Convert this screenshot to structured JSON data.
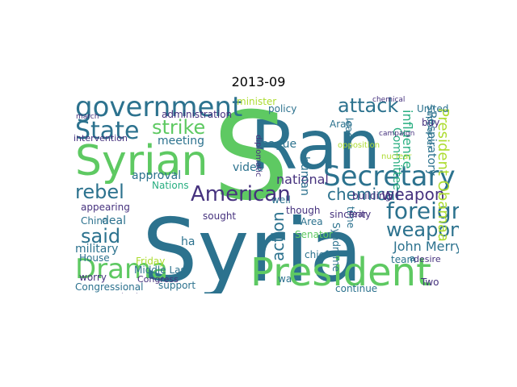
{
  "title": "2013-09",
  "palette": {
    "dark_purple": "#46327e",
    "indigo": "#3b528b",
    "blue": "#365c8d",
    "teal_blue": "#2c728e",
    "teal": "#21918c",
    "green_teal": "#28ae80",
    "green": "#5ec962",
    "lime": "#addc30",
    "yellow": "#fde725",
    "deep": "#440154"
  },
  "words": [
    {
      "text": "Syria",
      "color": "#2c728e"
    },
    {
      "text": "Ran",
      "color": "#2c728e"
    },
    {
      "text": "S",
      "color": "#5ec962"
    },
    {
      "text": "President",
      "color": "#5ec962"
    },
    {
      "text": "Syrian",
      "color": "#5ec962"
    },
    {
      "text": "government",
      "color": "#2c728e"
    },
    {
      "text": "Secretary",
      "color": "#2c728e"
    },
    {
      "text": "Drama",
      "color": "#5ec962"
    },
    {
      "text": "State",
      "color": "#2c728e"
    },
    {
      "text": "foreign",
      "color": "#2c728e"
    },
    {
      "text": "American",
      "color": "#46327e"
    },
    {
      "text": "rebel",
      "color": "#2c728e"
    },
    {
      "text": "said",
      "color": "#2c728e"
    },
    {
      "text": "attack",
      "color": "#2c728e"
    },
    {
      "text": "strike",
      "color": "#5ec962"
    },
    {
      "text": "weapon",
      "color": "#2c728e"
    },
    {
      "text": "action",
      "color": "#2c728e"
    },
    {
      "text": "chemical",
      "color": "#2c728e"
    },
    {
      "text": "weapon",
      "color": "#46327e"
    },
    {
      "text": "President Obamaa",
      "color": "#addc30"
    },
    {
      "text": "national",
      "color": "#46327e"
    },
    {
      "text": "influence",
      "color": "#28ae80"
    },
    {
      "text": "approval",
      "color": "#2c728e"
    },
    {
      "text": "League",
      "color": "#2c728e"
    },
    {
      "text": "meeting",
      "color": "#2c728e"
    },
    {
      "text": "administration",
      "color": "#46327e"
    },
    {
      "text": "intervention",
      "color": "#46327e"
    },
    {
      "text": "minister",
      "color": "#addc30"
    },
    {
      "text": "policy",
      "color": "#2c728e"
    },
    {
      "text": "Arab",
      "color": "#2c728e"
    },
    {
      "text": "United",
      "color": "#2c728e"
    },
    {
      "text": "Committee",
      "color": "#28ae80"
    },
    {
      "text": "Supporter",
      "color": "#2c728e"
    },
    {
      "text": "Respiratory",
      "color": "#2c728e"
    },
    {
      "text": "buy",
      "color": "#46327e"
    },
    {
      "text": "video",
      "color": "#2c728e"
    },
    {
      "text": "human",
      "color": "#2c728e"
    },
    {
      "text": "leader",
      "color": "#2c728e"
    },
    {
      "text": "Nations",
      "color": "#28ae80"
    },
    {
      "text": "appearing",
      "color": "#46327e"
    },
    {
      "text": "deal",
      "color": "#2c728e"
    },
    {
      "text": "China",
      "color": "#2c728e"
    },
    {
      "text": "sought",
      "color": "#46327e"
    },
    {
      "text": "well",
      "color": "#2c728e"
    },
    {
      "text": "though",
      "color": "#46327e"
    },
    {
      "text": "Area",
      "color": "#2c728e"
    },
    {
      "text": "Senator",
      "color": "#5ec962"
    },
    {
      "text": "building",
      "color": "#46327e"
    },
    {
      "text": "time",
      "color": "#2c728e"
    },
    {
      "text": "Syndrome",
      "color": "#2c728e"
    },
    {
      "text": "sincerity",
      "color": "#46327e"
    },
    {
      "text": "fear",
      "color": "#46327e"
    },
    {
      "text": "John Merry",
      "color": "#2c728e"
    },
    {
      "text": "team",
      "color": "#2c728e"
    },
    {
      "text": "desire",
      "color": "#46327e"
    },
    {
      "text": "Two",
      "color": "#46327e"
    },
    {
      "text": "military",
      "color": "#2c728e"
    },
    {
      "text": "Friday",
      "color": "#addc30"
    },
    {
      "text": "ha",
      "color": "#2c728e"
    },
    {
      "text": "Middle Last",
      "color": "#2c728e"
    },
    {
      "text": "Congress",
      "color": "#46327e"
    },
    {
      "text": "chief",
      "color": "#2c728e"
    },
    {
      "text": "wa",
      "color": "#2c728e"
    },
    {
      "text": "rival",
      "color": "#46327e"
    },
    {
      "text": "House",
      "color": "#2c728e"
    },
    {
      "text": "support",
      "color": "#2c728e"
    },
    {
      "text": "Congressional",
      "color": "#2c728e"
    },
    {
      "text": "continue",
      "color": "#2c728e"
    },
    {
      "text": "Russian",
      "color": "#2c728e"
    },
    {
      "text": "Group",
      "color": "#2c728e"
    },
    {
      "text": "worry",
      "color": "#46327e"
    },
    {
      "text": "march",
      "color": "#46327e"
    },
    {
      "text": "nuclear",
      "color": "#addc30"
    },
    {
      "text": "opposition",
      "color": "#addc30"
    },
    {
      "text": "diplomatic",
      "color": "#46327e"
    },
    {
      "text": "campaign",
      "color": "#46327e"
    },
    {
      "text": "chemical",
      "color": "#46327e"
    },
    {
      "text": "a",
      "color": "#2c728e"
    }
  ]
}
